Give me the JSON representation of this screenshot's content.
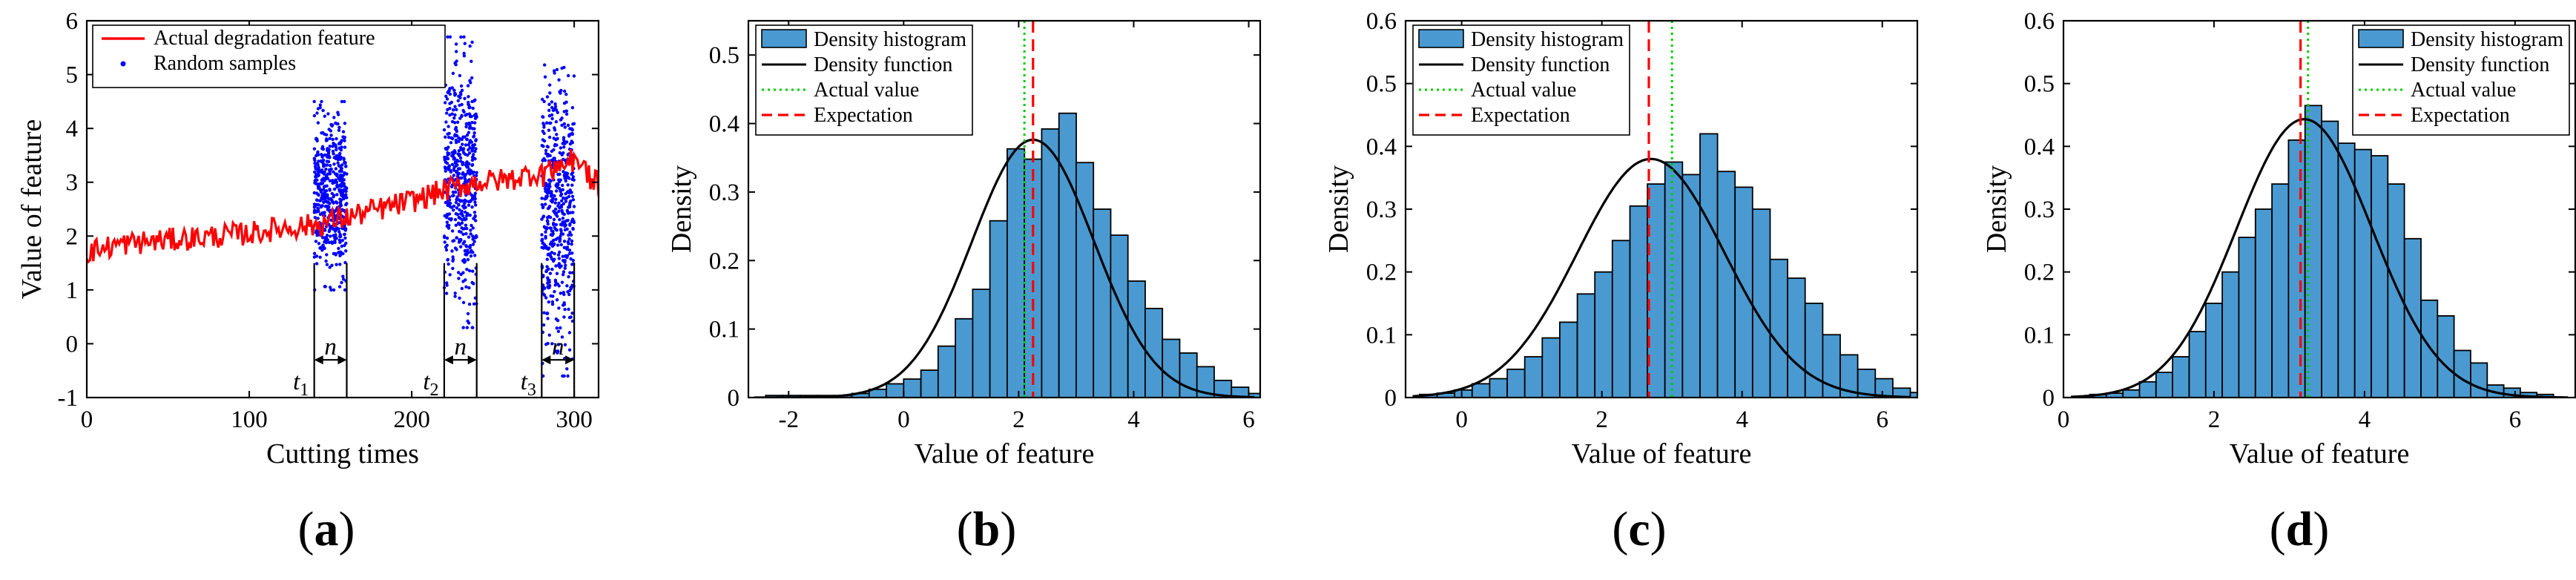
{
  "chart_data": [
    {
      "id": "a",
      "type": "line",
      "panel_label": "(a)",
      "xlabel": "Cutting times",
      "ylabel": "Value of feature",
      "xlim": [
        0,
        315
      ],
      "ylim": [
        -1,
        6
      ],
      "xticks": [
        0,
        100,
        200,
        300
      ],
      "xtick_labels": [
        "0",
        "100",
        "200",
        "300"
      ],
      "yticks": [
        -1,
        0,
        1,
        2,
        3,
        4,
        5,
        6
      ],
      "ytick_labels": [
        "-1",
        "0",
        "1",
        "2",
        "3",
        "4",
        "5",
        "6"
      ],
      "legend": {
        "position": "top-left",
        "entries": [
          {
            "label": "Actual degradation feature",
            "style": "red-line"
          },
          {
            "label": "Random samples",
            "style": "blue-dot"
          }
        ]
      },
      "series": [
        {
          "name": "Actual degradation feature",
          "color": "#ff0000",
          "x": [
            0,
            20,
            40,
            60,
            80,
            100,
            120,
            140,
            160,
            180,
            200,
            220,
            240,
            260,
            280,
            300,
            315
          ],
          "y": [
            1.7,
            1.85,
            1.9,
            1.95,
            2.0,
            2.05,
            2.15,
            2.2,
            2.35,
            2.5,
            2.65,
            2.85,
            3.0,
            3.05,
            3.2,
            3.4,
            3.0
          ]
        },
        {
          "name": "Random samples",
          "color": "#0000ff",
          "clusters": [
            {
              "x_range": [
                140,
                160
              ],
              "y_range": [
                1.0,
                4.5
              ]
            },
            {
              "x_range": [
                220,
                240
              ],
              "y_range": [
                0.3,
                5.7
              ]
            },
            {
              "x_range": [
                280,
                300
              ],
              "y_range": [
                -0.6,
                5.4
              ]
            }
          ]
        }
      ],
      "annotations": [
        {
          "t_label": "t",
          "t_sub": "1",
          "n_label": "n",
          "x_start": 140,
          "x_end": 160
        },
        {
          "t_label": "t",
          "t_sub": "2",
          "n_label": "n",
          "x_start": 220,
          "x_end": 240
        },
        {
          "t_label": "t",
          "t_sub": "3",
          "n_label": "n",
          "x_start": 280,
          "x_end": 300
        }
      ]
    },
    {
      "id": "b",
      "type": "bar",
      "panel_label": "(b)",
      "xlabel": "Value of feature",
      "ylabel": "Density",
      "xlim": [
        -2.7,
        6.2
      ],
      "ylim": [
        0,
        0.55
      ],
      "xticks": [
        -2,
        0,
        2,
        4,
        6
      ],
      "xtick_labels": [
        "-2",
        "0",
        "2",
        "4",
        "6"
      ],
      "yticks": [
        0,
        0.1,
        0.2,
        0.3,
        0.4,
        0.5
      ],
      "ytick_labels": [
        "0",
        "0.1",
        "0.2",
        "0.3",
        "0.4",
        "0.5"
      ],
      "bin_start": -2.4,
      "bin_width": 0.3,
      "values": [
        0.003,
        0.003,
        0.003,
        0.003,
        0.003,
        0.006,
        0.012,
        0.02,
        0.027,
        0.04,
        0.075,
        0.115,
        0.158,
        0.258,
        0.363,
        0.348,
        0.392,
        0.415,
        0.343,
        0.275,
        0.237,
        0.17,
        0.13,
        0.085,
        0.065,
        0.045,
        0.025,
        0.015,
        0.006
      ],
      "density_function": {
        "mean": 2.25,
        "std": 1.06
      },
      "actual_value": 2.1,
      "expectation": 2.25,
      "legend": {
        "position": "top-left",
        "entries": [
          {
            "label": "Density histogram",
            "style": "bar"
          },
          {
            "label": "Density function",
            "style": "black-line"
          },
          {
            "label": "Actual value",
            "style": "green-dotted"
          },
          {
            "label": "Expectation",
            "style": "red-dashed"
          }
        ]
      }
    },
    {
      "id": "c",
      "type": "bar",
      "panel_label": "(c)",
      "xlabel": "Value of feature",
      "ylabel": "Density",
      "xlim": [
        -0.8,
        6.5
      ],
      "ylim": [
        0,
        0.6
      ],
      "xticks": [
        0,
        2,
        4,
        6
      ],
      "xtick_labels": [
        "0",
        "2",
        "4",
        "6"
      ],
      "yticks": [
        0,
        0.1,
        0.2,
        0.3,
        0.4,
        0.5,
        0.6
      ],
      "ytick_labels": [
        "0",
        "0.1",
        "0.2",
        "0.3",
        "0.4",
        "0.5",
        "0.6"
      ],
      "bin_start": -0.6,
      "bin_width": 0.25,
      "values": [
        0.005,
        0.007,
        0.012,
        0.022,
        0.03,
        0.045,
        0.065,
        0.095,
        0.12,
        0.165,
        0.2,
        0.25,
        0.305,
        0.34,
        0.375,
        0.355,
        0.42,
        0.36,
        0.335,
        0.3,
        0.22,
        0.19,
        0.15,
        0.1,
        0.068,
        0.045,
        0.03,
        0.015,
        0.008
      ],
      "density_function": {
        "mean": 2.7,
        "std": 1.05
      },
      "actual_value": 3.0,
      "expectation": 2.67,
      "legend": {
        "position": "top-left",
        "entries": [
          {
            "label": "Density histogram",
            "style": "bar"
          },
          {
            "label": "Density function",
            "style": "black-line"
          },
          {
            "label": "Actual value",
            "style": "green-dotted"
          },
          {
            "label": "Expectation",
            "style": "red-dashed"
          }
        ]
      }
    },
    {
      "id": "d",
      "type": "bar",
      "panel_label": "(d)",
      "xlabel": "Value of feature",
      "ylabel": "Density",
      "xlim": [
        0,
        6.8
      ],
      "ylim": [
        0,
        0.6
      ],
      "xticks": [
        0,
        2,
        4,
        6
      ],
      "xtick_labels": [
        "0",
        "2",
        "4",
        "6"
      ],
      "yticks": [
        0,
        0.1,
        0.2,
        0.3,
        0.4,
        0.5,
        0.6
      ],
      "ytick_labels": [
        "0",
        "0.1",
        "0.2",
        "0.3",
        "0.4",
        "0.5",
        "0.6"
      ],
      "bin_start": 0.35,
      "bin_width": 0.22,
      "values": [
        0.005,
        0.007,
        0.012,
        0.025,
        0.04,
        0.065,
        0.105,
        0.15,
        0.2,
        0.255,
        0.3,
        0.34,
        0.41,
        0.465,
        0.44,
        0.405,
        0.395,
        0.385,
        0.34,
        0.253,
        0.155,
        0.13,
        0.075,
        0.055,
        0.02,
        0.015,
        0.008,
        0.005
      ],
      "density_function": {
        "mean": 3.2,
        "std": 0.9
      },
      "actual_value": 3.25,
      "expectation": 3.15,
      "legend": {
        "position": "top-right",
        "entries": [
          {
            "label": "Density histogram",
            "style": "bar"
          },
          {
            "label": "Density function",
            "style": "black-line"
          },
          {
            "label": "Actual value",
            "style": "green-dotted"
          },
          {
            "label": "Expectation",
            "style": "red-dashed"
          }
        ]
      }
    }
  ],
  "colors": {
    "bar_fill": "#4a9ad1",
    "red": "#ff0000",
    "green": "#00cc00",
    "blue": "#0000ff",
    "black": "#000000"
  }
}
